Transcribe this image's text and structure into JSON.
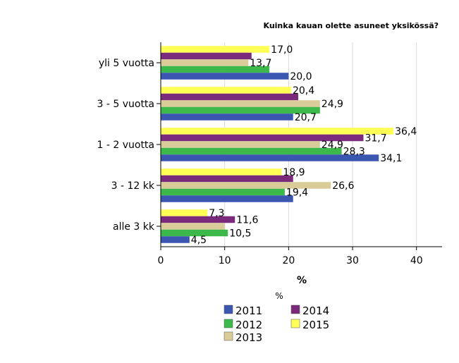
{
  "chart_data": {
    "type": "bar",
    "orientation": "horizontal",
    "title": "Kuinka kauan olette asuneet yksikössä?",
    "xlabel": "%",
    "sublabel": "%",
    "xlim": [
      0,
      44
    ],
    "xticks": [
      0,
      10,
      20,
      30,
      40
    ],
    "categories": [
      "yli 5 vuotta",
      "3 - 5 vuotta",
      "1 - 2 vuotta",
      "3 - 12 kk",
      "alle 3 kk"
    ],
    "series": [
      {
        "name": "2015",
        "color": "#ffff55",
        "values": [
          17.0,
          20.4,
          36.4,
          18.9,
          7.3
        ],
        "labels": [
          "17,0",
          "20,4",
          "36,4",
          "18,9",
          "7,3"
        ]
      },
      {
        "name": "2014",
        "color": "#7b2a7b",
        "values": [
          14.2,
          21.5,
          31.7,
          20.7,
          11.6
        ],
        "labels": [
          "",
          "",
          "31,7",
          "",
          "11,6"
        ]
      },
      {
        "name": "2013",
        "color": "#d9cc99",
        "values": [
          13.7,
          24.9,
          24.9,
          26.6,
          10.0
        ],
        "labels": [
          "13,7",
          "24,9",
          "24,9",
          "26,6",
          ""
        ]
      },
      {
        "name": "2012",
        "color": "#3cb94a",
        "values": [
          17.0,
          24.9,
          28.3,
          19.4,
          10.5
        ],
        "labels": [
          "",
          "",
          "28,3",
          "19,4",
          "10,5"
        ]
      },
      {
        "name": "2011",
        "color": "#3a56b0",
        "values": [
          20.0,
          20.7,
          34.1,
          20.7,
          4.5
        ],
        "labels": [
          "20,0",
          "20,7",
          "34,1",
          "",
          "4,5"
        ]
      }
    ],
    "legend": {
      "placement": "bottom",
      "items": [
        {
          "name": "2011",
          "color": "#3a56b0"
        },
        {
          "name": "2014",
          "color": "#7b2a7b"
        },
        {
          "name": "2012",
          "color": "#3cb94a"
        },
        {
          "name": "2015",
          "color": "#ffff55"
        },
        {
          "name": "2013",
          "color": "#d9cc99"
        }
      ]
    },
    "grid": true
  }
}
